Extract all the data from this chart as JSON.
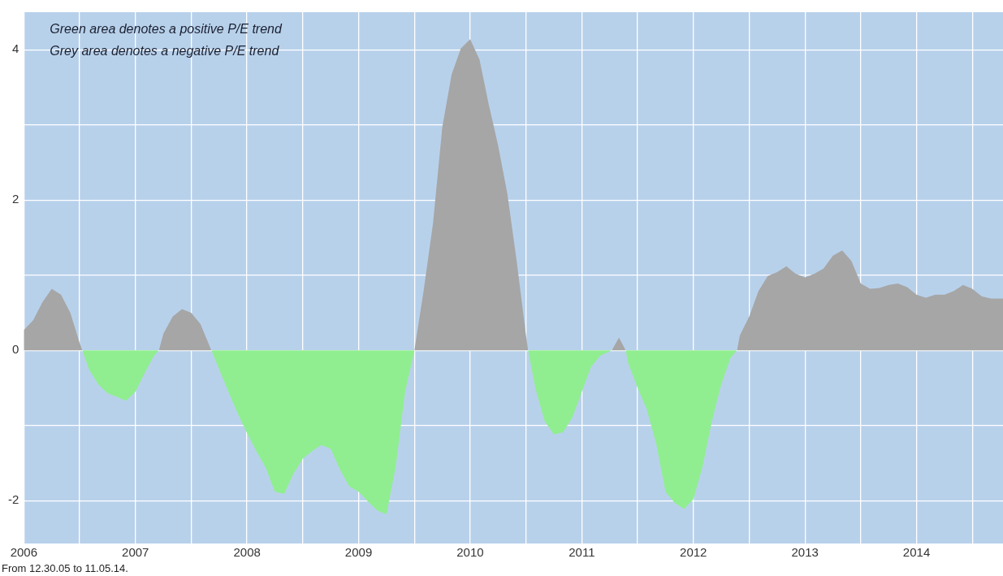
{
  "chart_data": {
    "type": "area",
    "annotations": [
      "Green area denotes a positive P/E trend",
      "Grey area denotes a negative P/E trend",
      "From 12.30.05 to 11.05.14."
    ],
    "series": [
      {
        "color": "#a6a6a6",
        "x": [
          "2006-01",
          "2006-02",
          "2006-03",
          "2006-04",
          "2006-05",
          "2006-06",
          "2006-07",
          "2006-07-10",
          "2006-12",
          "2007-03-17",
          "2007-04",
          "2007-05",
          "2007-06",
          "2007-07",
          "2007-08",
          "2007-09",
          "2007-09-06",
          "2008-12",
          "2009-07",
          "2009-08",
          "2009-09",
          "2009-10",
          "2009-11",
          "2009-12",
          "2010-01",
          "2010-02",
          "2010-03",
          "2010-04",
          "2010-05",
          "2010-06",
          "2010-07",
          "2010-07-08",
          "2010-12",
          "2011-04-08",
          "2011-05",
          "2011-05-23",
          "2011-12",
          "2012-05-22",
          "2012-06",
          "2012-07",
          "2012-08",
          "2012-09",
          "2012-10",
          "2012-11",
          "2012-12",
          "2013-01",
          "2013-02",
          "2013-03",
          "2013-04",
          "2013-05",
          "2013-06",
          "2013-07",
          "2013-08",
          "2013-09",
          "2013-10",
          "2013-11",
          "2013-12",
          "2014-01",
          "2014-02",
          "2014-03",
          "2014-04",
          "2014-05",
          "2014-06",
          "2014-07",
          "2014-08",
          "2014-09",
          "2014-10",
          "2014-10-10"
        ],
        "values": [
          0.27,
          0.4,
          0.64,
          0.82,
          0.74,
          0.5,
          0.1,
          0,
          null,
          0,
          0.22,
          0.45,
          0.55,
          0.5,
          0.35,
          0.05,
          0,
          null,
          0,
          0.8,
          1.69,
          2.97,
          3.67,
          4.02,
          4.14,
          3.87,
          3.27,
          2.73,
          2.08,
          1.19,
          0.2,
          0,
          null,
          0,
          0.17,
          0,
          null,
          0,
          0.2,
          0.45,
          0.79,
          0.99,
          1.04,
          1.12,
          1.02,
          0.97,
          1.02,
          1.09,
          1.26,
          1.33,
          1.19,
          0.89,
          0.82,
          0.83,
          0.87,
          0.89,
          0.84,
          0.74,
          0.7,
          0.74,
          0.74,
          0.79,
          0.87,
          0.82,
          0.72,
          0.69,
          0.69,
          0.69
        ]
      },
      {
        "color": "#90ee90",
        "x": [
          "2006-07-10",
          "2006-08",
          "2006-09",
          "2006-10",
          "2006-11",
          "2006-12",
          "2007-01",
          "2007-02",
          "2007-03",
          "2007-03-17",
          "2007-06",
          "2007-09-06",
          "2007-10",
          "2007-11",
          "2007-12",
          "2008-01",
          "2008-02",
          "2008-03",
          "2008-04",
          "2008-05",
          "2008-06",
          "2008-07",
          "2008-08",
          "2008-09",
          "2008-10",
          "2008-11",
          "2008-12",
          "2009-01",
          "2009-02",
          "2009-03",
          "2009-04",
          "2009-05",
          "2009-06",
          "2009-07",
          "2010-01",
          "2010-07-08",
          "2010-08",
          "2010-09",
          "2010-10",
          "2010-11",
          "2010-12",
          "2011-01",
          "2011-02",
          "2011-03",
          "2011-04-08",
          "2011-05",
          "2011-05-23",
          "2011-06",
          "2011-07",
          "2011-08",
          "2011-09",
          "2011-10",
          "2011-11",
          "2011-12",
          "2012-01",
          "2012-02",
          "2012-03",
          "2012-04",
          "2012-05",
          "2012-05-22"
        ],
        "values": [
          0,
          -0.25,
          -0.45,
          -0.57,
          -0.62,
          -0.67,
          -0.55,
          -0.3,
          -0.07,
          0,
          null,
          0,
          -0.25,
          -0.55,
          -0.84,
          -1.1,
          -1.34,
          -1.56,
          -1.88,
          -1.91,
          -1.64,
          -1.44,
          -1.34,
          -1.26,
          -1.31,
          -1.59,
          -1.81,
          -1.88,
          -2.01,
          -2.13,
          -2.18,
          -1.54,
          -0.55,
          0,
          null,
          0,
          -0.5,
          -0.94,
          -1.12,
          -1.09,
          -0.89,
          -0.55,
          -0.22,
          -0.07,
          0,
          null,
          0,
          -0.17,
          -0.5,
          -0.79,
          -1.24,
          -1.88,
          -2.03,
          -2.11,
          -1.98,
          -1.54,
          -0.94,
          -0.45,
          -0.1,
          0
        ]
      }
    ],
    "xlim": [
      "2006-01",
      "2014-10-10"
    ],
    "xticks": [
      {
        "value": "2006",
        "label": "2006"
      },
      {
        "value": "2006-07",
        "label": null
      },
      {
        "value": "2007",
        "label": "2007"
      },
      {
        "value": "2007-07",
        "label": null
      },
      {
        "value": "2008",
        "label": "2008"
      },
      {
        "value": "2008-07",
        "label": null
      },
      {
        "value": "2009",
        "label": "2009"
      },
      {
        "value": "2009-07",
        "label": null
      },
      {
        "value": "2010",
        "label": "2010"
      },
      {
        "value": "2010-07",
        "label": null
      },
      {
        "value": "2011",
        "label": "2011"
      },
      {
        "value": "2011-07",
        "label": null
      },
      {
        "value": "2012",
        "label": "2012"
      },
      {
        "value": "2012-07",
        "label": null
      },
      {
        "value": "2013",
        "label": "2013"
      },
      {
        "value": "2013-07",
        "label": null
      },
      {
        "value": "2014",
        "label": "2014"
      },
      {
        "value": "2014-07",
        "label": null
      }
    ],
    "ylim": [
      -2.57,
      4.5
    ],
    "yticks": [
      -2,
      {
        "value": -1,
        "label": null
      },
      0,
      {
        "value": 1,
        "label": null
      },
      2,
      {
        "value": 3,
        "label": null
      },
      4
    ],
    "grid": true
  }
}
